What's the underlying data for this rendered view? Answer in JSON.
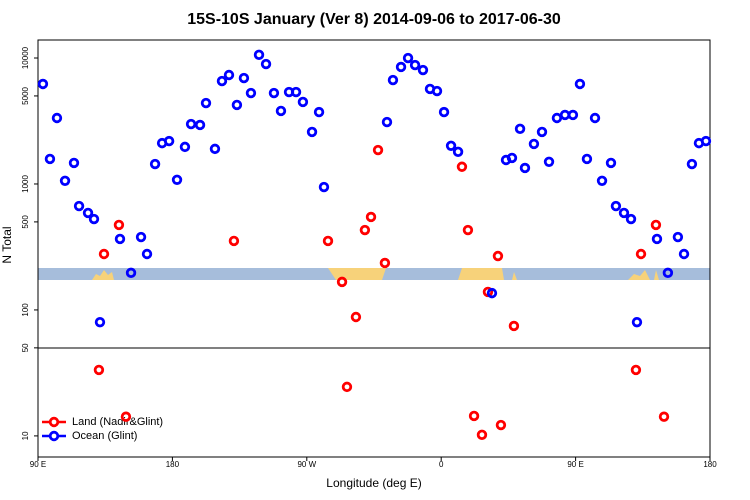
{
  "chart_data": {
    "type": "scatter",
    "title": "15S-10S January (Ver 8)   2014-09-06 to 2017-06-30",
    "x_label": "Longitude (deg E)",
    "y_label": "N Total",
    "xlim": [
      90,
      540
    ],
    "ylim": [
      6.8,
      13900
    ],
    "y_log": true,
    "legend": "bottom-left",
    "xticks": [
      {
        "value": 90,
        "label": "90 E"
      },
      180,
      {
        "value": 270,
        "label": "90 W"
      },
      {
        "value": 360,
        "label": "0"
      },
      {
        "value": 450,
        "label": "90 E"
      },
      {
        "value": 540,
        "label": "180"
      }
    ],
    "yticks": [
      10,
      50,
      100,
      500,
      1000,
      5000,
      10000
    ],
    "series": [
      {
        "name": "Land (Nadir&Glint)",
        "color": "#ff0000",
        "x": [
          134.2,
          144.2,
          130.8,
          148.9,
          221.2,
          284.2,
          293.6,
          296.9,
          302.9,
          308.9,
          313.0,
          317.7,
          322.3,
          373.9,
          377.9,
          382.0,
          387.3,
          391.3,
          398.0,
          400.0,
          408.7,
          493.8,
          503.8,
          490.4,
          509.2
        ],
        "values": [
          278,
          473,
          33.4,
          14.2,
          353,
          353,
          167,
          24.5,
          87.9,
          431,
          547,
          1860,
          236,
          1370,
          431,
          14.4,
          10.2,
          139,
          268,
          12.2,
          74.6,
          278,
          473,
          33.4,
          14.2
        ]
      },
      {
        "name": "Ocean (Glint)",
        "color": "#0000ff",
        "x": [
          93.3,
          98.0,
          102.7,
          108.1,
          114.1,
          117.5,
          123.5,
          127.5,
          131.5,
          144.9,
          152.3,
          159.0,
          163.0,
          168.4,
          173.1,
          177.8,
          183.1,
          188.4,
          192.5,
          198.5,
          202.5,
          208.5,
          213.2,
          217.9,
          223.2,
          227.9,
          232.6,
          238.0,
          242.7,
          248.0,
          252.7,
          258.1,
          262.8,
          267.4,
          273.5,
          278.2,
          281.5,
          323.7,
          327.7,
          333.1,
          337.8,
          342.5,
          347.8,
          352.5,
          357.2,
          361.9,
          366.6,
          371.3,
          394.0,
          403.4,
          407.4,
          412.8,
          416.1,
          422.1,
          427.5,
          432.2,
          437.5,
          442.9,
          448.2,
          452.9,
          457.6,
          463.0,
          467.7,
          473.7,
          477.0,
          482.4,
          487.1,
          491.1,
          504.5,
          511.8,
          518.5,
          522.6,
          527.9,
          532.6,
          537.3
        ],
        "values": [
          6220,
          1580,
          3340,
          1060,
          1470,
          668,
          589,
          527,
          80,
          366,
          197,
          379,
          278,
          1440,
          2110,
          2190,
          1080,
          1970,
          2990,
          2940,
          4390,
          1900,
          6560,
          7330,
          4240,
          6930,
          5270,
          10600,
          8960,
          5270,
          3800,
          5370,
          5370,
          4480,
          2590,
          3720,
          946,
          3100,
          6680,
          8490,
          10000,
          8790,
          8030,
          5680,
          5470,
          3720,
          2010,
          1800,
          136,
          1550,
          1610,
          2740,
          1340,
          2080,
          2590,
          1500,
          3340,
          3530,
          3530,
          6220,
          1580,
          3340,
          1060,
          1470,
          668,
          589,
          527,
          80,
          366,
          197,
          379,
          278,
          1440,
          2110,
          2190
        ]
      }
    ]
  }
}
